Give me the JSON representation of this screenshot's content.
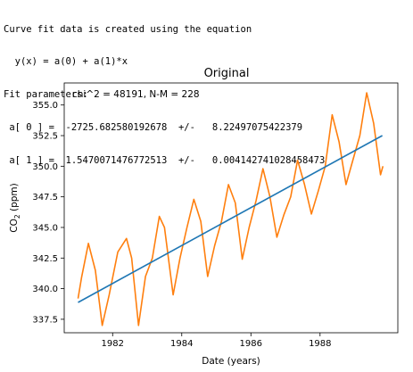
{
  "console": {
    "lines": [
      "Curve fit data is created using the equation",
      "  y(x) = a(0) + a(1)*x",
      "Fit parameters:",
      " a[ 0 ] =  -2725.682580192678  +/-   8.22497075422379",
      " a[ 1 ] =  1.5470071476772513  +/-   0.004142741028458473"
    ]
  },
  "chart_data": {
    "type": "line",
    "title": "Original",
    "xlabel": "Date (years)",
    "ylabel": "CO",
    "ylabel_sub": "2",
    "ylabel_unit": " (ppm)",
    "annotation": "chi^2 = 48191,    N-M = 228",
    "xlim": [
      1980.6,
      1990.25
    ],
    "ylim": [
      336.4,
      356.8
    ],
    "x_ticks": [
      1982,
      1984,
      1986,
      1988
    ],
    "y_ticks": [
      337.5,
      340.0,
      342.5,
      345.0,
      347.5,
      350.0,
      352.5,
      355.0
    ],
    "x_tick_labels": [
      "1982",
      "1984",
      "1986",
      "1988"
    ],
    "y_tick_labels": [
      "337.5",
      "340.0",
      "342.5",
      "345.0",
      "347.5",
      "350.0",
      "352.5",
      "355.0"
    ],
    "grid": false,
    "series": [
      {
        "color": "#ff7f0e",
        "x": [
          1981.0,
          1981.1,
          1981.3,
          1981.5,
          1981.7,
          1981.9,
          1982.15,
          1982.4,
          1982.55,
          1982.75,
          1982.95,
          1983.15,
          1983.35,
          1983.5,
          1983.75,
          1983.95,
          1984.15,
          1984.35,
          1984.55,
          1984.75,
          1984.95,
          1985.15,
          1985.35,
          1985.55,
          1985.75,
          1985.95,
          1986.15,
          1986.35,
          1986.55,
          1986.75,
          1986.95,
          1987.15,
          1987.35,
          1987.55,
          1987.75,
          1987.95,
          1988.15,
          1988.35,
          1988.55,
          1988.75,
          1988.95,
          1989.15,
          1989.35,
          1989.55,
          1989.75,
          1989.82
        ],
        "y": [
          339.2,
          340.9,
          343.7,
          341.5,
          337.0,
          339.5,
          343.0,
          344.1,
          342.5,
          337.0,
          341.0,
          342.5,
          345.9,
          345.0,
          339.5,
          342.5,
          345.0,
          347.3,
          345.5,
          341.0,
          343.5,
          345.5,
          348.5,
          347.0,
          342.4,
          345.0,
          347.2,
          349.8,
          347.5,
          344.2,
          346.0,
          347.5,
          350.5,
          348.5,
          346.1,
          348.0,
          350.0,
          354.2,
          352.0,
          348.5,
          350.5,
          352.5,
          356.0,
          353.5,
          349.3,
          350.0
        ]
      },
      {
        "color": "#1f77b4",
        "x": [
          1981.0,
          1989.8
        ],
        "y": [
          338.88,
          352.5
        ]
      }
    ]
  }
}
